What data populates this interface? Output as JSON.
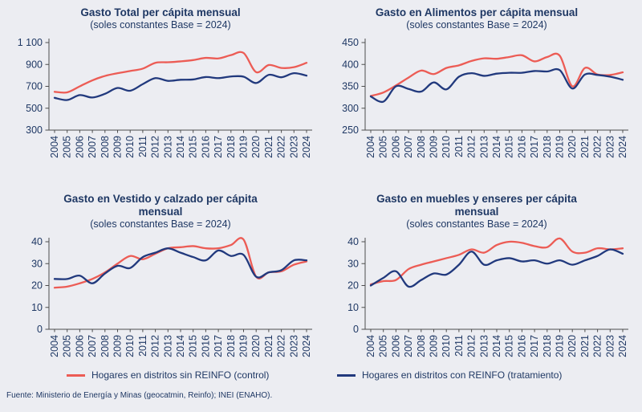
{
  "colors": {
    "background": "#ECEDF2",
    "text": "#1F3864",
    "axis": "#4D4D4D",
    "control": "#EC5C55",
    "treatment": "#21397D"
  },
  "legend": {
    "items": [
      {
        "label": "Hogares en distritos sin REINFO (control)",
        "series": "control"
      },
      {
        "label": "Hogares en distritos con REINFO (tratamiento)",
        "series": "treatment"
      }
    ]
  },
  "footer": {
    "text": "Fuente: Ministerio de Energía y Minas (geocatmin, Reinfo); INEI (ENAHO)."
  },
  "chart_data": [
    {
      "type": "line",
      "title": "Gasto Total per cápita mensual",
      "subtitle": "(soles constantes Base = 2024)",
      "xlabel": "",
      "ylabel": "",
      "grid": false,
      "x": [
        2004,
        2005,
        2006,
        2007,
        2008,
        2009,
        2010,
        2011,
        2012,
        2013,
        2014,
        2015,
        2016,
        2017,
        2018,
        2019,
        2020,
        2021,
        2022,
        2023,
        2024
      ],
      "ylim": [
        300,
        1100
      ],
      "yticks": [
        300,
        500,
        700,
        900,
        1100
      ],
      "ytick_labels": [
        "300",
        "500",
        "700",
        "900",
        "1 100"
      ],
      "series": [
        {
          "name": "Hogares en distritos sin REINFO (control)",
          "color_key": "control",
          "values": [
            650,
            645,
            700,
            755,
            795,
            820,
            840,
            862,
            915,
            920,
            928,
            940,
            960,
            955,
            985,
            1005,
            830,
            895,
            868,
            875,
            915
          ]
        },
        {
          "name": "Hogares en distritos con REINFO (tratamiento)",
          "color_key": "treatment",
          "values": [
            595,
            575,
            620,
            598,
            632,
            685,
            660,
            720,
            775,
            750,
            760,
            763,
            785,
            775,
            790,
            788,
            730,
            805,
            783,
            820,
            798
          ]
        }
      ]
    },
    {
      "type": "line",
      "title": "Gasto en Alimentos per cápita mensual",
      "subtitle": "(soles constantes Base = 2024)",
      "xlabel": "",
      "ylabel": "",
      "grid": false,
      "x": [
        2004,
        2005,
        2006,
        2007,
        2008,
        2009,
        2010,
        2011,
        2012,
        2013,
        2014,
        2015,
        2016,
        2017,
        2018,
        2019,
        2020,
        2021,
        2022,
        2023,
        2024
      ],
      "ylim": [
        250,
        450
      ],
      "yticks": [
        250,
        300,
        350,
        400,
        450
      ],
      "ytick_labels": [
        "250",
        "300",
        "350",
        "400",
        "450"
      ],
      "series": [
        {
          "name": "Hogares en distritos sin REINFO (control)",
          "color_key": "control",
          "values": [
            328,
            336,
            352,
            370,
            386,
            378,
            392,
            398,
            408,
            414,
            413,
            417,
            421,
            407,
            417,
            420,
            350,
            392,
            377,
            376,
            382
          ]
        },
        {
          "name": "Hogares en distritos con REINFO (tratamiento)",
          "color_key": "treatment",
          "values": [
            327,
            315,
            350,
            344,
            338,
            359,
            343,
            372,
            380,
            374,
            379,
            381,
            381,
            385,
            384,
            387,
            345,
            377,
            376,
            372,
            365
          ]
        }
      ]
    },
    {
      "type": "line",
      "title": "Gasto en Vestido y calzado per cápita mensual",
      "subtitle": "(soles constantes Base = 2024)",
      "xlabel": "",
      "ylabel": "",
      "grid": false,
      "x": [
        2004,
        2005,
        2006,
        2007,
        2008,
        2009,
        2010,
        2011,
        2012,
        2013,
        2014,
        2015,
        2016,
        2017,
        2018,
        2019,
        2020,
        2021,
        2022,
        2023,
        2024
      ],
      "ylim": [
        0,
        40
      ],
      "yticks": [
        0,
        10,
        20,
        30,
        40
      ],
      "ytick_labels": [
        "0",
        "10",
        "20",
        "30",
        "40"
      ],
      "series": [
        {
          "name": "Hogares en distritos sin REINFO (control)",
          "color_key": "control",
          "values": [
            19,
            19.5,
            21,
            23,
            26,
            30,
            33.5,
            32,
            34.5,
            37,
            37.5,
            38,
            37,
            37,
            38.5,
            41,
            24,
            26,
            26.5,
            29.5,
            31
          ]
        },
        {
          "name": "Hogares en distritos con REINFO (tratamiento)",
          "color_key": "treatment",
          "values": [
            23,
            23,
            24.5,
            21,
            25.5,
            29,
            28,
            33,
            35,
            37,
            35,
            33,
            31.5,
            36,
            33.5,
            34,
            24,
            26,
            27,
            31.5,
            31.5
          ]
        }
      ]
    },
    {
      "type": "line",
      "title": "Gasto en muebles y enseres per cápita mensual",
      "subtitle": "(soles constantes Base = 2024)",
      "xlabel": "",
      "ylabel": "",
      "grid": false,
      "x": [
        2004,
        2005,
        2006,
        2007,
        2008,
        2009,
        2010,
        2011,
        2012,
        2013,
        2014,
        2015,
        2016,
        2017,
        2018,
        2019,
        2020,
        2021,
        2022,
        2023,
        2024
      ],
      "ylim": [
        0,
        40
      ],
      "yticks": [
        0,
        10,
        20,
        30,
        40
      ],
      "ytick_labels": [
        "0",
        "10",
        "20",
        "30",
        "40"
      ],
      "series": [
        {
          "name": "Hogares en distritos sin REINFO (control)",
          "color_key": "control",
          "values": [
            20.5,
            22,
            22.5,
            27.5,
            29.5,
            31,
            32.5,
            34,
            36.5,
            35,
            38.5,
            40,
            39.5,
            38,
            37.5,
            41.5,
            35.5,
            35,
            37,
            36.5,
            37
          ]
        },
        {
          "name": "Hogares en distritos con REINFO (tratamiento)",
          "color_key": "treatment",
          "values": [
            20,
            23.5,
            26.5,
            19.5,
            22.5,
            25.5,
            25,
            29.5,
            35.5,
            29.5,
            31.5,
            32.5,
            31,
            31.5,
            30,
            31.5,
            29.5,
            31.5,
            33.5,
            36.5,
            34.5
          ]
        }
      ]
    }
  ]
}
